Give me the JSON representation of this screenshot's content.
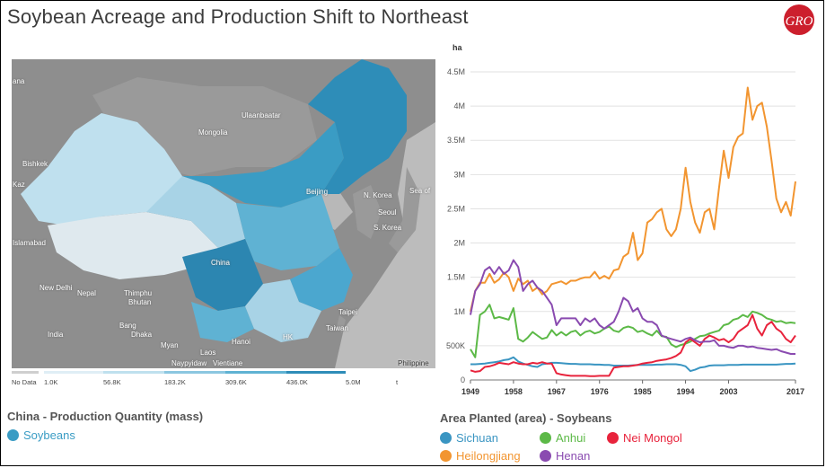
{
  "title": "Soybean Acreage and Production Shift to Northeast",
  "colors": {
    "accent": "#cc1f2d",
    "map_blue": "#3a9cc4",
    "map_light": "#bfe0ee"
  },
  "map": {
    "caption": "China - Production Quantity (mass)",
    "legend": [
      {
        "label": "Soybeans",
        "color": "#3a9cc4"
      }
    ],
    "labels": [
      "Ulaanbaatar",
      "Mongolia",
      "Bishkek",
      "Kaz",
      "Beijing",
      "N. Korea",
      "Seoul",
      "S. Korea",
      "Sea of",
      "Islamabad",
      "China",
      "New Delhi",
      "Nepal",
      "Thimphu",
      "Bhutan",
      "India",
      "Bang",
      "Dhaka",
      "Myan",
      "Laos",
      "Hanoi",
      "Taipei",
      "Taiwan",
      "Naypyidaw",
      "Vientiane",
      "Philippine",
      "HK",
      "ana"
    ],
    "scale": {
      "no_data": "No Data",
      "ticks": [
        "1.0K",
        "56.8K",
        "183.2K",
        "309.6K",
        "436.0K",
        "5.0M"
      ],
      "unit": "t"
    }
  },
  "chart_data": {
    "type": "line",
    "title": "",
    "caption": "Area Planted (area) - Soybeans",
    "ylabel": "ha",
    "xlim": [
      1949,
      2017
    ],
    "ylim": [
      0,
      4500000
    ],
    "x_ticks": [
      "1949",
      "1958",
      "1967",
      "1976",
      "1985",
      "1994",
      "2003",
      "2017"
    ],
    "y_ticks": [
      "0",
      "500K",
      "1M",
      "1.5M",
      "2M",
      "2.5M",
      "3M",
      "3.5M",
      "4M",
      "4.5M"
    ],
    "x": [
      1949,
      1950,
      1951,
      1952,
      1953,
      1954,
      1955,
      1956,
      1957,
      1958,
      1959,
      1960,
      1961,
      1962,
      1963,
      1964,
      1965,
      1966,
      1967,
      1968,
      1969,
      1970,
      1971,
      1972,
      1973,
      1974,
      1975,
      1976,
      1977,
      1978,
      1979,
      1980,
      1981,
      1982,
      1983,
      1984,
      1985,
      1986,
      1987,
      1988,
      1989,
      1990,
      1991,
      1992,
      1993,
      1994,
      1995,
      1996,
      1997,
      1998,
      1999,
      2000,
      2001,
      2002,
      2003,
      2004,
      2005,
      2006,
      2007,
      2008,
      2009,
      2010,
      2011,
      2012,
      2013,
      2014,
      2015,
      2016,
      2017
    ],
    "series": [
      {
        "name": "Sichuan",
        "color": "#3a95c2",
        "values": [
          230000,
          230000,
          235000,
          240000,
          250000,
          260000,
          270000,
          290000,
          300000,
          330000,
          270000,
          240000,
          220000,
          200000,
          190000,
          230000,
          240000,
          250000,
          250000,
          245000,
          240000,
          235000,
          235000,
          230000,
          230000,
          230000,
          225000,
          225000,
          220000,
          220000,
          210000,
          210000,
          210000,
          210000,
          215000,
          220000,
          220000,
          220000,
          220000,
          225000,
          225000,
          230000,
          230000,
          230000,
          220000,
          200000,
          130000,
          150000,
          180000,
          190000,
          210000,
          215000,
          215000,
          215000,
          220000,
          220000,
          220000,
          225000,
          225000,
          225000,
          225000,
          225000,
          225000,
          225000,
          225000,
          230000,
          235000,
          235000,
          240000
        ]
      },
      {
        "name": "Heilongjiang",
        "color": "#f29530",
        "values": [
          1000000,
          1300000,
          1420000,
          1420000,
          1550000,
          1420000,
          1470000,
          1570000,
          1500000,
          1300000,
          1480000,
          1400000,
          1450000,
          1300000,
          1350000,
          1250000,
          1300000,
          1400000,
          1420000,
          1440000,
          1400000,
          1450000,
          1450000,
          1480000,
          1500000,
          1500000,
          1580000,
          1480000,
          1520000,
          1480000,
          1600000,
          1620000,
          1800000,
          1850000,
          2150000,
          1750000,
          1850000,
          2300000,
          2350000,
          2450000,
          2500000,
          2200000,
          2100000,
          2200000,
          2500000,
          3100000,
          2600000,
          2300000,
          2150000,
          2450000,
          2500000,
          2200000,
          2800000,
          3350000,
          2950000,
          3400000,
          3550000,
          3600000,
          4270000,
          3800000,
          4000000,
          4050000,
          3700000,
          3200000,
          2650000,
          2450000,
          2600000,
          2400000,
          2900000
        ]
      },
      {
        "name": "Anhui",
        "color": "#5cb947",
        "values": [
          450000,
          330000,
          950000,
          1000000,
          1100000,
          900000,
          920000,
          900000,
          880000,
          1050000,
          600000,
          560000,
          620000,
          700000,
          650000,
          600000,
          620000,
          730000,
          650000,
          700000,
          650000,
          700000,
          720000,
          650000,
          700000,
          720000,
          680000,
          700000,
          750000,
          780000,
          720000,
          700000,
          760000,
          780000,
          760000,
          700000,
          720000,
          680000,
          650000,
          720000,
          640000,
          630000,
          520000,
          480000,
          510000,
          530000,
          560000,
          600000,
          640000,
          650000,
          680000,
          700000,
          720000,
          800000,
          820000,
          880000,
          900000,
          950000,
          920000,
          1000000,
          980000,
          950000,
          900000,
          880000,
          850000,
          860000,
          830000,
          840000,
          830000
        ]
      },
      {
        "name": "Nei Mongol",
        "color": "#e8233c",
        "values": [
          140000,
          120000,
          130000,
          190000,
          200000,
          220000,
          250000,
          240000,
          230000,
          260000,
          240000,
          230000,
          230000,
          250000,
          240000,
          260000,
          240000,
          240000,
          100000,
          80000,
          70000,
          60000,
          60000,
          60000,
          60000,
          55000,
          55000,
          60000,
          60000,
          60000,
          180000,
          190000,
          200000,
          200000,
          210000,
          220000,
          240000,
          250000,
          260000,
          280000,
          290000,
          300000,
          320000,
          350000,
          400000,
          550000,
          600000,
          550000,
          500000,
          600000,
          650000,
          620000,
          580000,
          600000,
          550000,
          600000,
          700000,
          750000,
          800000,
          950000,
          750000,
          650000,
          800000,
          850000,
          750000,
          700000,
          600000,
          550000,
          650000
        ]
      },
      {
        "name": "Henan",
        "color": "#8a4bb0",
        "values": [
          950000,
          1300000,
          1400000,
          1600000,
          1650000,
          1550000,
          1650000,
          1550000,
          1600000,
          1750000,
          1650000,
          1300000,
          1400000,
          1450000,
          1350000,
          1300000,
          1200000,
          1100000,
          800000,
          900000,
          900000,
          900000,
          900000,
          800000,
          900000,
          850000,
          900000,
          800000,
          750000,
          800000,
          850000,
          1000000,
          1200000,
          1150000,
          1000000,
          1050000,
          900000,
          850000,
          850000,
          800000,
          650000,
          620000,
          600000,
          580000,
          560000,
          600000,
          620000,
          580000,
          550000,
          560000,
          560000,
          580000,
          500000,
          500000,
          480000,
          470000,
          500000,
          500000,
          480000,
          490000,
          470000,
          460000,
          450000,
          440000,
          450000,
          420000,
          400000,
          380000,
          380000
        ]
      }
    ]
  },
  "chart_legend_order": [
    "Sichuan",
    "Anhui",
    "Nei Mongol",
    "Heilongjiang",
    "Henan"
  ]
}
